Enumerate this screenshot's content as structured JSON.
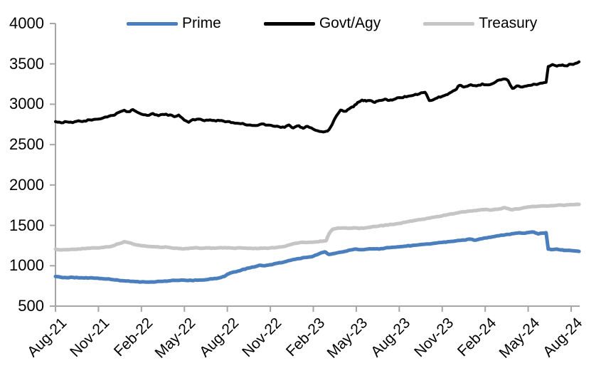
{
  "chart_data": {
    "type": "line",
    "title": "",
    "xlabel": "",
    "ylabel": "",
    "grid": false,
    "legend_position": "top",
    "ylim": [
      500,
      4000
    ],
    "y_ticks": [
      500,
      1000,
      1500,
      2000,
      2500,
      3000,
      3500,
      4000
    ],
    "x_ticks": {
      "months": [
        0,
        3,
        6,
        9,
        12,
        15,
        18,
        21,
        24,
        27,
        30,
        33,
        36
      ],
      "labels": [
        "Aug-21",
        "Nov-21",
        "Feb-22",
        "May-22",
        "Aug-22",
        "Nov-22",
        "Feb-23",
        "May-23",
        "Aug-23",
        "Nov-23",
        "Feb-24",
        "May-24",
        "Aug-24"
      ]
    },
    "xlim_months": [
      0,
      36.55
    ],
    "style": {
      "axis_color": "#a6a6a6",
      "text_color": "#000000",
      "background": "#ffffff"
    },
    "series": [
      {
        "name": "Prime",
        "color": "#4a7ebc",
        "stroke_width": 5,
        "noise": 3.5,
        "points": [
          [
            0,
            868
          ],
          [
            0.4,
            856
          ],
          [
            0.8,
            852
          ],
          [
            1.2,
            856
          ],
          [
            1.6,
            850
          ],
          [
            2,
            848
          ],
          [
            2.4,
            850
          ],
          [
            2.8,
            846
          ],
          [
            3.2,
            842
          ],
          [
            3.6,
            836
          ],
          [
            4,
            828
          ],
          [
            4.4,
            820
          ],
          [
            4.8,
            813
          ],
          [
            5.2,
            808
          ],
          [
            5.6,
            803
          ],
          [
            6,
            800
          ],
          [
            6.5,
            798
          ],
          [
            7,
            801
          ],
          [
            7.5,
            807
          ],
          [
            8,
            814
          ],
          [
            8.5,
            818
          ],
          [
            9,
            821
          ],
          [
            9.5,
            818
          ],
          [
            10,
            822
          ],
          [
            10.5,
            827
          ],
          [
            11,
            838
          ],
          [
            11.5,
            852
          ],
          [
            11.8,
            868
          ],
          [
            12,
            895
          ],
          [
            12.3,
            915
          ],
          [
            12.6,
            925
          ],
          [
            13,
            948
          ],
          [
            13.5,
            972
          ],
          [
            14,
            992
          ],
          [
            14.3,
            1006
          ],
          [
            14.6,
            1000
          ],
          [
            15,
            1012
          ],
          [
            15.5,
            1032
          ],
          [
            16,
            1048
          ],
          [
            16.5,
            1072
          ],
          [
            17,
            1088
          ],
          [
            17.5,
            1103
          ],
          [
            18,
            1118
          ],
          [
            18.4,
            1148
          ],
          [
            18.8,
            1172
          ],
          [
            19.1,
            1140
          ],
          [
            19.5,
            1152
          ],
          [
            19.8,
            1166
          ],
          [
            20.2,
            1178
          ],
          [
            20.6,
            1196
          ],
          [
            21,
            1206
          ],
          [
            21.4,
            1199
          ],
          [
            21.8,
            1206
          ],
          [
            22.2,
            1210
          ],
          [
            22.6,
            1206
          ],
          [
            23,
            1218
          ],
          [
            23.5,
            1228
          ],
          [
            24,
            1234
          ],
          [
            24.5,
            1243
          ],
          [
            25,
            1254
          ],
          [
            25.5,
            1263
          ],
          [
            26,
            1270
          ],
          [
            26.5,
            1279
          ],
          [
            27,
            1289
          ],
          [
            27.5,
            1299
          ],
          [
            28,
            1309
          ],
          [
            28.5,
            1319
          ],
          [
            29,
            1329
          ],
          [
            29.3,
            1316
          ],
          [
            29.7,
            1334
          ],
          [
            30,
            1344
          ],
          [
            30.5,
            1358
          ],
          [
            31,
            1373
          ],
          [
            31.5,
            1388
          ],
          [
            32,
            1398
          ],
          [
            32.4,
            1408
          ],
          [
            32.8,
            1404
          ],
          [
            33.1,
            1414
          ],
          [
            33.4,
            1417
          ],
          [
            33.7,
            1394
          ],
          [
            34,
            1404
          ],
          [
            34.25,
            1409
          ],
          [
            34.4,
            1206
          ],
          [
            34.7,
            1200
          ],
          [
            35,
            1206
          ],
          [
            35.3,
            1196
          ],
          [
            35.6,
            1191
          ],
          [
            36,
            1188
          ],
          [
            36.3,
            1183
          ],
          [
            36.55,
            1178
          ]
        ]
      },
      {
        "name": "Govt/Agy",
        "color": "#000000",
        "stroke_width": 4,
        "noise": 8,
        "points": [
          [
            0,
            2785
          ],
          [
            0.4,
            2770
          ],
          [
            0.8,
            2782
          ],
          [
            1.2,
            2772
          ],
          [
            1.6,
            2796
          ],
          [
            2,
            2792
          ],
          [
            2.4,
            2806
          ],
          [
            2.8,
            2814
          ],
          [
            3.2,
            2822
          ],
          [
            3.6,
            2842
          ],
          [
            4,
            2862
          ],
          [
            4.4,
            2898
          ],
          [
            4.8,
            2926
          ],
          [
            5.1,
            2908
          ],
          [
            5.4,
            2934
          ],
          [
            5.7,
            2902
          ],
          [
            6,
            2878
          ],
          [
            6.4,
            2862
          ],
          [
            6.8,
            2886
          ],
          [
            7.2,
            2858
          ],
          [
            7.6,
            2872
          ],
          [
            8,
            2868
          ],
          [
            8.3,
            2846
          ],
          [
            8.6,
            2866
          ],
          [
            9,
            2802
          ],
          [
            9.3,
            2776
          ],
          [
            9.6,
            2812
          ],
          [
            10,
            2816
          ],
          [
            10.4,
            2796
          ],
          [
            10.8,
            2806
          ],
          [
            11.2,
            2792
          ],
          [
            11.6,
            2798
          ],
          [
            12,
            2786
          ],
          [
            12.4,
            2772
          ],
          [
            12.8,
            2762
          ],
          [
            13.2,
            2752
          ],
          [
            13.6,
            2744
          ],
          [
            14,
            2736
          ],
          [
            14.4,
            2756
          ],
          [
            14.8,
            2742
          ],
          [
            15.2,
            2730
          ],
          [
            15.6,
            2722
          ],
          [
            16,
            2714
          ],
          [
            16.3,
            2744
          ],
          [
            16.6,
            2706
          ],
          [
            17,
            2734
          ],
          [
            17.3,
            2702
          ],
          [
            17.6,
            2726
          ],
          [
            18,
            2692
          ],
          [
            18.3,
            2672
          ],
          [
            18.7,
            2656
          ],
          [
            19,
            2668
          ],
          [
            19.3,
            2745
          ],
          [
            19.6,
            2852
          ],
          [
            19.9,
            2928
          ],
          [
            20.2,
            2912
          ],
          [
            20.5,
            2942
          ],
          [
            20.8,
            2968
          ],
          [
            21.1,
            3022
          ],
          [
            21.4,
            3052
          ],
          [
            21.7,
            3038
          ],
          [
            22,
            3046
          ],
          [
            22.3,
            3022
          ],
          [
            22.6,
            3046
          ],
          [
            23,
            3064
          ],
          [
            23.3,
            3048
          ],
          [
            23.6,
            3058
          ],
          [
            24,
            3082
          ],
          [
            24.5,
            3092
          ],
          [
            25,
            3112
          ],
          [
            25.4,
            3128
          ],
          [
            25.8,
            3148
          ],
          [
            26.1,
            3046
          ],
          [
            26.5,
            3068
          ],
          [
            27,
            3098
          ],
          [
            27.5,
            3138
          ],
          [
            27.9,
            3176
          ],
          [
            28.2,
            3234
          ],
          [
            28.5,
            3212
          ],
          [
            29,
            3242
          ],
          [
            29.4,
            3228
          ],
          [
            29.8,
            3252
          ],
          [
            30.2,
            3240
          ],
          [
            30.6,
            3262
          ],
          [
            31,
            3302
          ],
          [
            31.3,
            3312
          ],
          [
            31.6,
            3292
          ],
          [
            31.9,
            3196
          ],
          [
            32.2,
            3228
          ],
          [
            32.6,
            3214
          ],
          [
            33,
            3232
          ],
          [
            33.5,
            3246
          ],
          [
            34,
            3262
          ],
          [
            34.25,
            3272
          ],
          [
            34.4,
            3468
          ],
          [
            34.7,
            3492
          ],
          [
            35,
            3472
          ],
          [
            35.3,
            3482
          ],
          [
            35.6,
            3476
          ],
          [
            36,
            3496
          ],
          [
            36.3,
            3506
          ],
          [
            36.55,
            3526
          ]
        ]
      },
      {
        "name": "Treasury",
        "color": "#c5c5c5",
        "stroke_width": 5,
        "noise": 4,
        "points": [
          [
            0,
            1206
          ],
          [
            0.4,
            1196
          ],
          [
            0.8,
            1200
          ],
          [
            1.2,
            1204
          ],
          [
            1.6,
            1208
          ],
          [
            2,
            1212
          ],
          [
            2.4,
            1216
          ],
          [
            2.8,
            1220
          ],
          [
            3.2,
            1226
          ],
          [
            3.6,
            1234
          ],
          [
            4,
            1246
          ],
          [
            4.4,
            1272
          ],
          [
            4.8,
            1298
          ],
          [
            5.1,
            1286
          ],
          [
            5.4,
            1270
          ],
          [
            5.8,
            1256
          ],
          [
            6.2,
            1246
          ],
          [
            6.6,
            1238
          ],
          [
            7,
            1234
          ],
          [
            7.4,
            1228
          ],
          [
            7.8,
            1230
          ],
          [
            8.2,
            1218
          ],
          [
            8.6,
            1213
          ],
          [
            9,
            1211
          ],
          [
            9.4,
            1218
          ],
          [
            9.8,
            1224
          ],
          [
            10.2,
            1217
          ],
          [
            10.6,
            1220
          ],
          [
            11,
            1219
          ],
          [
            11.4,
            1222
          ],
          [
            11.8,
            1224
          ],
          [
            12.2,
            1220
          ],
          [
            12.6,
            1217
          ],
          [
            13,
            1221
          ],
          [
            13.4,
            1215
          ],
          [
            13.8,
            1212
          ],
          [
            14.2,
            1214
          ],
          [
            14.6,
            1219
          ],
          [
            15,
            1221
          ],
          [
            15.4,
            1226
          ],
          [
            15.8,
            1234
          ],
          [
            16.2,
            1252
          ],
          [
            16.6,
            1272
          ],
          [
            17,
            1284
          ],
          [
            17.4,
            1289
          ],
          [
            17.8,
            1292
          ],
          [
            18.2,
            1296
          ],
          [
            18.6,
            1302
          ],
          [
            18.9,
            1310
          ],
          [
            19.1,
            1398
          ],
          [
            19.35,
            1452
          ],
          [
            19.6,
            1462
          ],
          [
            20,
            1468
          ],
          [
            20.4,
            1464
          ],
          [
            20.8,
            1470
          ],
          [
            21.2,
            1462
          ],
          [
            21.6,
            1468
          ],
          [
            22,
            1478
          ],
          [
            22.5,
            1488
          ],
          [
            23,
            1502
          ],
          [
            23.5,
            1512
          ],
          [
            24,
            1524
          ],
          [
            24.5,
            1542
          ],
          [
            25,
            1558
          ],
          [
            25.5,
            1572
          ],
          [
            26,
            1588
          ],
          [
            26.5,
            1604
          ],
          [
            27,
            1618
          ],
          [
            27.5,
            1638
          ],
          [
            28,
            1652
          ],
          [
            28.5,
            1668
          ],
          [
            29,
            1678
          ],
          [
            29.5,
            1688
          ],
          [
            30,
            1698
          ],
          [
            30.3,
            1690
          ],
          [
            30.7,
            1700
          ],
          [
            31,
            1704
          ],
          [
            31.3,
            1718
          ],
          [
            31.6,
            1708
          ],
          [
            31.9,
            1694
          ],
          [
            32.2,
            1704
          ],
          [
            32.6,
            1714
          ],
          [
            33,
            1728
          ],
          [
            33.4,
            1734
          ],
          [
            33.8,
            1738
          ],
          [
            34.2,
            1740
          ],
          [
            34.6,
            1744
          ],
          [
            35,
            1748
          ],
          [
            35.4,
            1750
          ],
          [
            35.8,
            1754
          ],
          [
            36.2,
            1757
          ],
          [
            36.55,
            1760
          ]
        ]
      }
    ]
  }
}
